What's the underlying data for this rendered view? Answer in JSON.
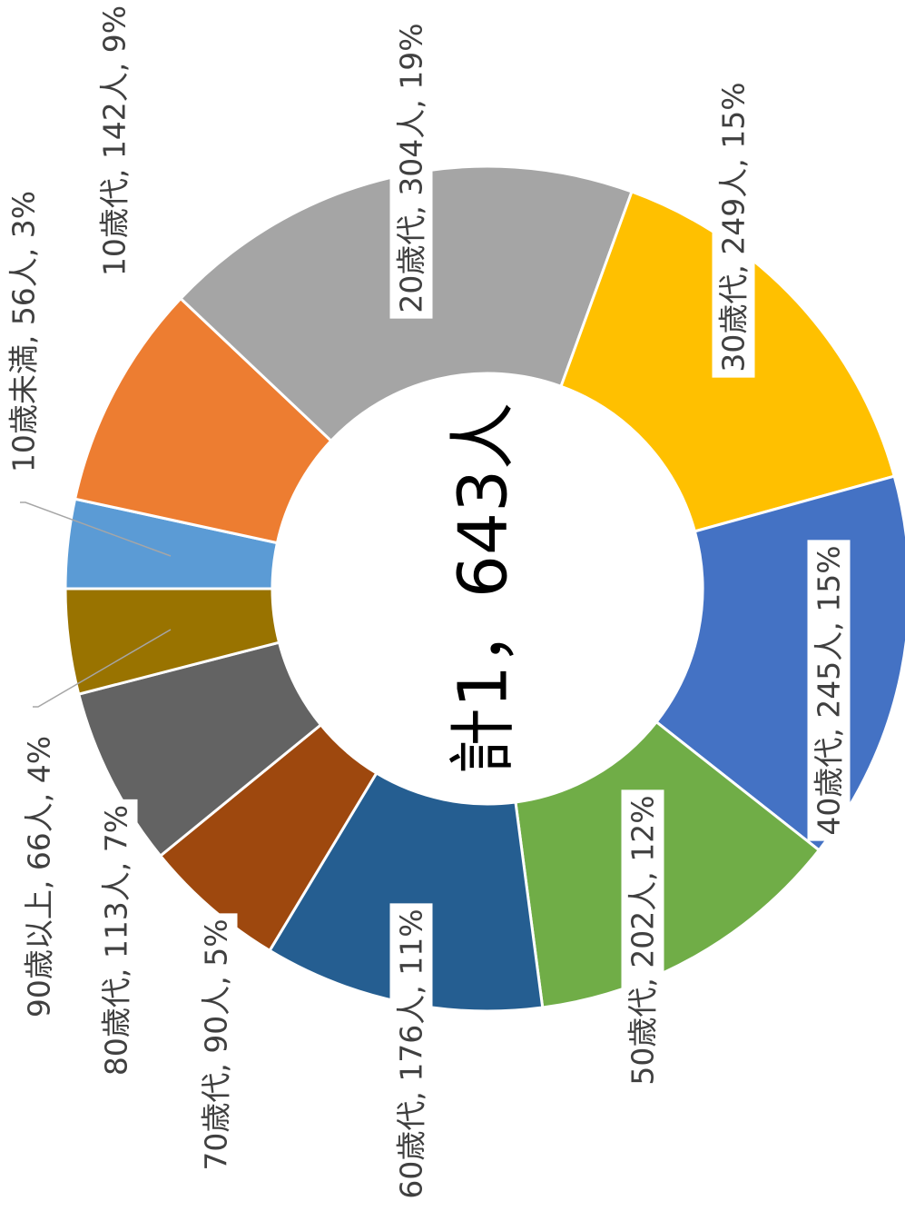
{
  "chart_data": {
    "type": "donut",
    "center_label": "計1，643人",
    "categories": [
      "10歳未満",
      "10歳代",
      "20歳代",
      "30歳代",
      "40歳代",
      "50歳代",
      "60歳代",
      "70歳代",
      "80歳代",
      "90歳以上"
    ],
    "values": [
      56,
      142,
      304,
      249,
      245,
      202,
      176,
      90,
      113,
      66
    ],
    "value_labels": [
      "10歳未満, 56人, 3%",
      "10歳代, 142人, 9%",
      "20歳代, 304人, 19%",
      "30歳代, 249人, 15%",
      "40歳代, 245人, 15%",
      "50歳代, 202人, 12%",
      "60歳代, 176人, 11%",
      "70歳代, 90人, 5%",
      "80歳代, 113人, 7%",
      "90歳以上, 66人, 4%"
    ],
    "colors": [
      "#5b9bd5",
      "#ed7d31",
      "#a5a5a5",
      "#ffc000",
      "#4472c4",
      "#70ad47",
      "#255e91",
      "#9e480e",
      "#636363",
      "#997300"
    ]
  }
}
